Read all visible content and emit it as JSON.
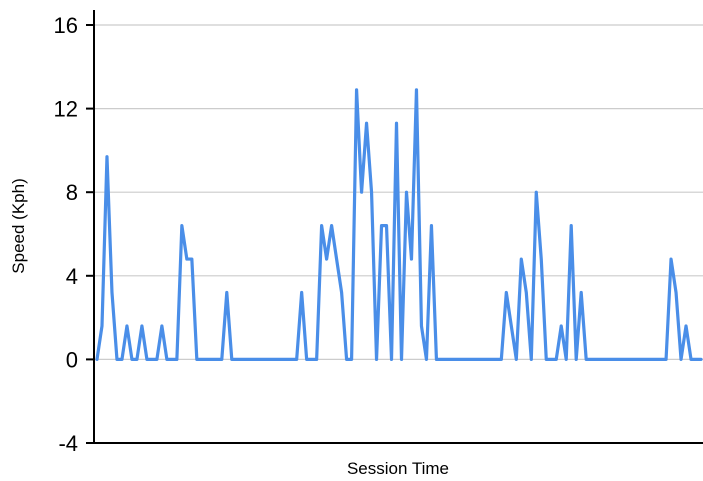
{
  "chart_data": {
    "type": "line",
    "title": "",
    "xlabel": "Session Time",
    "ylabel": "Speed (Kph)",
    "ylim": [
      -4,
      16
    ],
    "yticks": [
      -4,
      0,
      4,
      8,
      12,
      16
    ],
    "grid": true,
    "x_tick_labels": false,
    "colors": {
      "line": "#4a8ee8",
      "grid": "#cccccc",
      "axis": "#000000"
    },
    "series": [
      {
        "values": [
          0,
          1.6,
          9.7,
          3.2,
          0,
          0,
          1.6,
          0,
          0,
          1.6,
          0,
          0,
          0,
          1.6,
          0,
          0,
          0,
          6.4,
          4.8,
          4.8,
          0,
          0,
          0,
          0,
          0,
          0,
          3.2,
          0,
          0,
          0,
          0,
          0,
          0,
          0,
          0,
          0,
          0,
          0,
          0,
          0,
          0,
          3.2,
          0,
          0,
          0,
          6.4,
          4.8,
          6.4,
          4.8,
          3.2,
          0,
          0,
          12.9,
          8.0,
          11.3,
          8.0,
          0,
          6.4,
          6.4,
          0,
          11.3,
          0,
          8.0,
          4.8,
          12.9,
          1.6,
          0,
          6.4,
          0,
          0,
          0,
          0,
          0,
          0,
          0,
          0,
          0,
          0,
          0,
          0,
          0,
          0,
          3.2,
          1.6,
          0,
          4.8,
          3.2,
          0,
          8.0,
          4.8,
          0,
          0,
          0,
          1.6,
          0,
          6.4,
          0,
          3.2,
          0,
          0,
          0,
          0,
          0,
          0,
          0,
          0,
          0,
          0,
          0,
          0,
          0,
          0,
          0,
          0,
          0,
          4.8,
          3.2,
          0,
          1.6,
          0,
          0,
          0
        ]
      }
    ]
  }
}
